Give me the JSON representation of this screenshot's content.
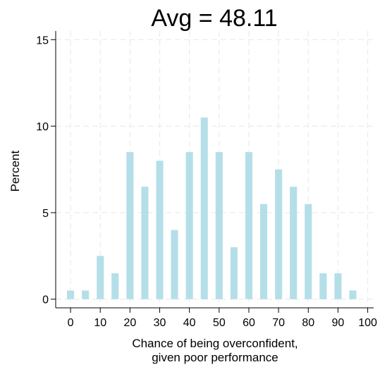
{
  "chart_data": {
    "type": "bar",
    "title": "Avg = 48.11",
    "xlabel": [
      "Chance of being overconfident,",
      "given poor performance"
    ],
    "ylabel": "Percent",
    "xlim": [
      -5,
      102
    ],
    "ylim": [
      -0.5,
      15.5
    ],
    "x_ticks": [
      0,
      10,
      20,
      30,
      40,
      50,
      60,
      70,
      80,
      90,
      100
    ],
    "y_ticks": [
      0,
      5,
      10,
      15
    ],
    "grid": true,
    "bar_color": "#b5dfe8",
    "points": [
      {
        "x": 0,
        "y": 0.5
      },
      {
        "x": 5,
        "y": 0.5
      },
      {
        "x": 10,
        "y": 2.5
      },
      {
        "x": 15,
        "y": 1.5
      },
      {
        "x": 20,
        "y": 8.5
      },
      {
        "x": 25,
        "y": 6.5
      },
      {
        "x": 30,
        "y": 8.0
      },
      {
        "x": 35,
        "y": 4.0
      },
      {
        "x": 40,
        "y": 8.5
      },
      {
        "x": 45,
        "y": 10.5
      },
      {
        "x": 50,
        "y": 8.5
      },
      {
        "x": 55,
        "y": 3.0
      },
      {
        "x": 60,
        "y": 8.5
      },
      {
        "x": 65,
        "y": 5.5
      },
      {
        "x": 70,
        "y": 7.5
      },
      {
        "x": 75,
        "y": 6.5
      },
      {
        "x": 80,
        "y": 5.5
      },
      {
        "x": 85,
        "y": 1.5
      },
      {
        "x": 90,
        "y": 1.5
      },
      {
        "x": 95,
        "y": 0.5
      }
    ]
  }
}
